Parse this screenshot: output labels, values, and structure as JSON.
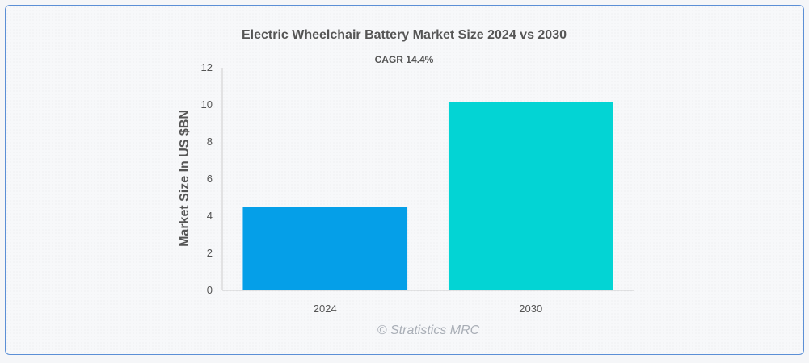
{
  "chart_data": {
    "type": "bar",
    "title": "Electric Wheelchair Battery Market Size 2024 vs 2030",
    "subtitle": "CAGR 14.4%",
    "xlabel": "",
    "ylabel": "Market Size In US $BN",
    "categories": [
      "2024",
      "2030"
    ],
    "values": [
      4.5,
      10.15
    ],
    "ylim": [
      0,
      12
    ],
    "yticks": [
      "0",
      "2",
      "4",
      "6",
      "8",
      "10",
      "12"
    ],
    "grid": false,
    "colors": [
      "#059fe8",
      "#03d4d4"
    ],
    "watermark": "© Stratistics MRC"
  }
}
